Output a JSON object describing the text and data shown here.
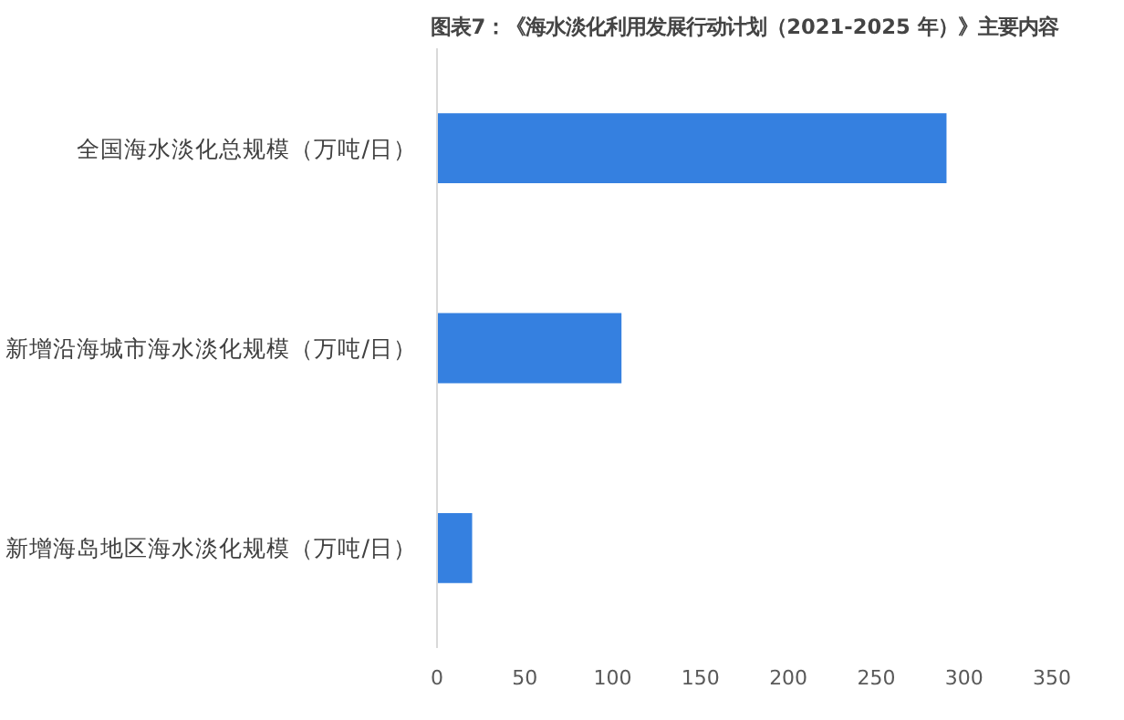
{
  "chart_data": {
    "type": "bar",
    "orientation": "horizontal",
    "title": "图表7：《海水淡化利用发展行动计划（2021-2025 年）》主要内容",
    "categories": [
      "全国海水淡化总规模（万吨/日）",
      "新增沿海城市海水淡化规模（万吨/日）",
      "新增海岛地区海水淡化规模（万吨/日）"
    ],
    "values": [
      290,
      105,
      20
    ],
    "color": "#3580e0",
    "xlim": [
      0,
      350
    ],
    "xticks": [
      0,
      50,
      100,
      150,
      200,
      250,
      300,
      350
    ],
    "grid": false
  }
}
